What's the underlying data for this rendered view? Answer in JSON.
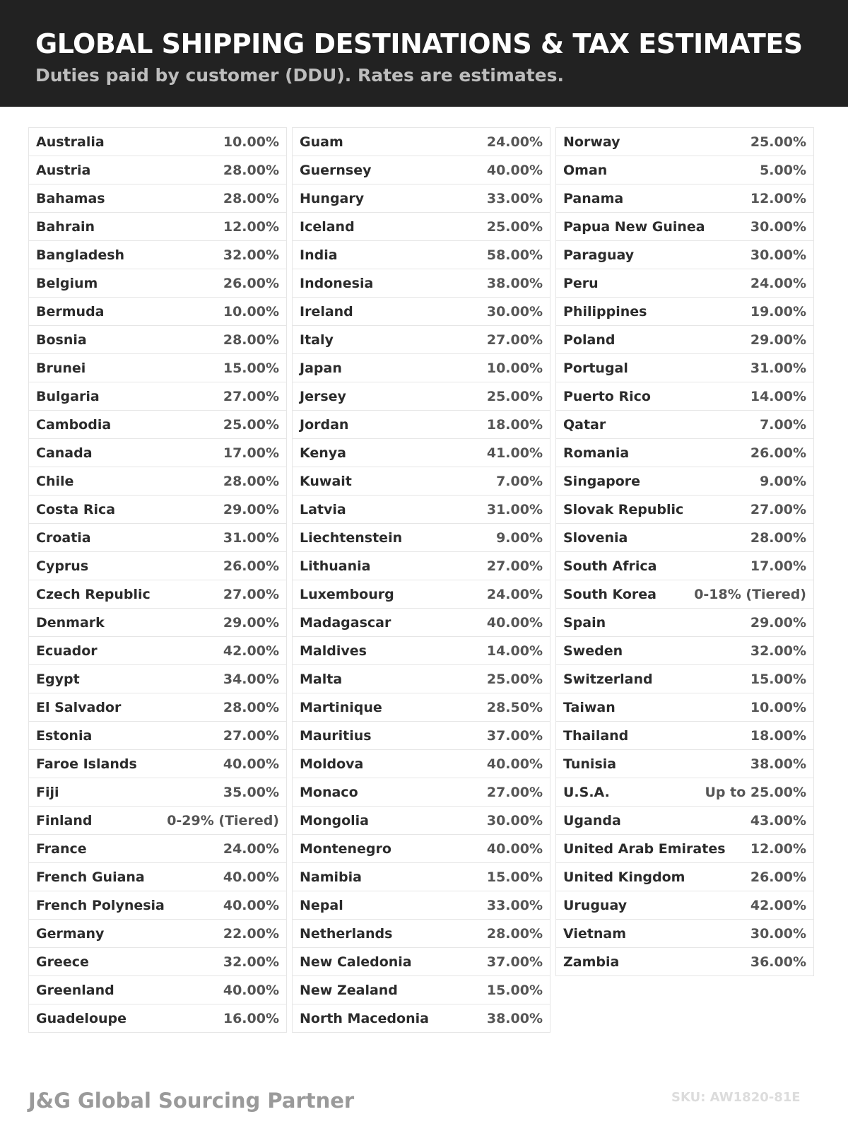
{
  "header": {
    "title": "GLOBAL SHIPPING DESTINATIONS & TAX ESTIMATES",
    "subtitle": "Duties paid by customer (DDU). Rates are estimates."
  },
  "columns": [
    [
      [
        "Australia",
        "10.00%"
      ],
      [
        "Austria",
        "28.00%"
      ],
      [
        "Bahamas",
        "28.00%"
      ],
      [
        "Bahrain",
        "12.00%"
      ],
      [
        "Bangladesh",
        "32.00%"
      ],
      [
        "Belgium",
        "26.00%"
      ],
      [
        "Bermuda",
        "10.00%"
      ],
      [
        "Bosnia",
        "28.00%"
      ],
      [
        "Brunei",
        "15.00%"
      ],
      [
        "Bulgaria",
        "27.00%"
      ],
      [
        "Cambodia",
        "25.00%"
      ],
      [
        "Canada",
        "17.00%"
      ],
      [
        "Chile",
        "28.00%"
      ],
      [
        "Costa Rica",
        "29.00%"
      ],
      [
        "Croatia",
        "31.00%"
      ],
      [
        "Cyprus",
        "26.00%"
      ],
      [
        "Czech Republic",
        "27.00%"
      ],
      [
        "Denmark",
        "29.00%"
      ],
      [
        "Ecuador",
        "42.00%"
      ],
      [
        "Egypt",
        "34.00%"
      ],
      [
        "El Salvador",
        "28.00%"
      ],
      [
        "Estonia",
        "27.00%"
      ],
      [
        "Faroe Islands",
        "40.00%"
      ],
      [
        "Fiji",
        "35.00%"
      ],
      [
        "Finland",
        "0-29% (Tiered)"
      ],
      [
        "France",
        "24.00%"
      ],
      [
        "French Guiana",
        "40.00%"
      ],
      [
        "French Polynesia",
        "40.00%"
      ],
      [
        "Germany",
        "22.00%"
      ],
      [
        "Greece",
        "32.00%"
      ],
      [
        "Greenland",
        "40.00%"
      ],
      [
        "Guadeloupe",
        "16.00%"
      ]
    ],
    [
      [
        "Guam",
        "24.00%"
      ],
      [
        "Guernsey",
        "40.00%"
      ],
      [
        "Hungary",
        "33.00%"
      ],
      [
        "Iceland",
        "25.00%"
      ],
      [
        "India",
        "58.00%"
      ],
      [
        "Indonesia",
        "38.00%"
      ],
      [
        "Ireland",
        "30.00%"
      ],
      [
        "Italy",
        "27.00%"
      ],
      [
        "Japan",
        "10.00%"
      ],
      [
        "Jersey",
        "25.00%"
      ],
      [
        "Jordan",
        "18.00%"
      ],
      [
        "Kenya",
        "41.00%"
      ],
      [
        "Kuwait",
        "7.00%"
      ],
      [
        "Latvia",
        "31.00%"
      ],
      [
        "Liechtenstein",
        "9.00%"
      ],
      [
        "Lithuania",
        "27.00%"
      ],
      [
        "Luxembourg",
        "24.00%"
      ],
      [
        "Madagascar",
        "40.00%"
      ],
      [
        "Maldives",
        "14.00%"
      ],
      [
        "Malta",
        "25.00%"
      ],
      [
        "Martinique",
        "28.50%"
      ],
      [
        "Mauritius",
        "37.00%"
      ],
      [
        "Moldova",
        "40.00%"
      ],
      [
        "Monaco",
        "27.00%"
      ],
      [
        "Mongolia",
        "30.00%"
      ],
      [
        "Montenegro",
        "40.00%"
      ],
      [
        "Namibia",
        "15.00%"
      ],
      [
        "Nepal",
        "33.00%"
      ],
      [
        "Netherlands",
        "28.00%"
      ],
      [
        "New Caledonia",
        "37.00%"
      ],
      [
        "New Zealand",
        "15.00%"
      ],
      [
        "North Macedonia",
        "38.00%"
      ]
    ],
    [
      [
        "Norway",
        "25.00%"
      ],
      [
        "Oman",
        "5.00%"
      ],
      [
        "Panama",
        "12.00%"
      ],
      [
        "Papua New Guinea",
        "30.00%"
      ],
      [
        "Paraguay",
        "30.00%"
      ],
      [
        "Peru",
        "24.00%"
      ],
      [
        "Philippines",
        "19.00%"
      ],
      [
        "Poland",
        "29.00%"
      ],
      [
        "Portugal",
        "31.00%"
      ],
      [
        "Puerto Rico",
        "14.00%"
      ],
      [
        "Qatar",
        "7.00%"
      ],
      [
        "Romania",
        "26.00%"
      ],
      [
        "Singapore",
        "9.00%"
      ],
      [
        "Slovak Republic",
        "27.00%"
      ],
      [
        "Slovenia",
        "28.00%"
      ],
      [
        "South Africa",
        "17.00%"
      ],
      [
        "South Korea",
        "0-18% (Tiered)"
      ],
      [
        "Spain",
        "29.00%"
      ],
      [
        "Sweden",
        "32.00%"
      ],
      [
        "Switzerland",
        "15.00%"
      ],
      [
        "Taiwan",
        "10.00%"
      ],
      [
        "Thailand",
        "18.00%"
      ],
      [
        "Tunisia",
        "38.00%"
      ],
      [
        "U.S.A.",
        "Up to 25.00%"
      ],
      [
        "Uganda",
        "43.00%"
      ],
      [
        "United Arab Emirates",
        "12.00%"
      ],
      [
        "United Kingdom",
        "26.00%"
      ],
      [
        "Uruguay",
        "42.00%"
      ],
      [
        "Vietnam",
        "30.00%"
      ],
      [
        "Zambia",
        "36.00%"
      ]
    ]
  ],
  "footer": {
    "brand": "J&G Global Sourcing Partner",
    "sku": "SKU: AW1820-81E"
  },
  "colors": {
    "header_bg": "#222222",
    "country_text": "#2b2b2b",
    "rate_text": "#555555"
  }
}
